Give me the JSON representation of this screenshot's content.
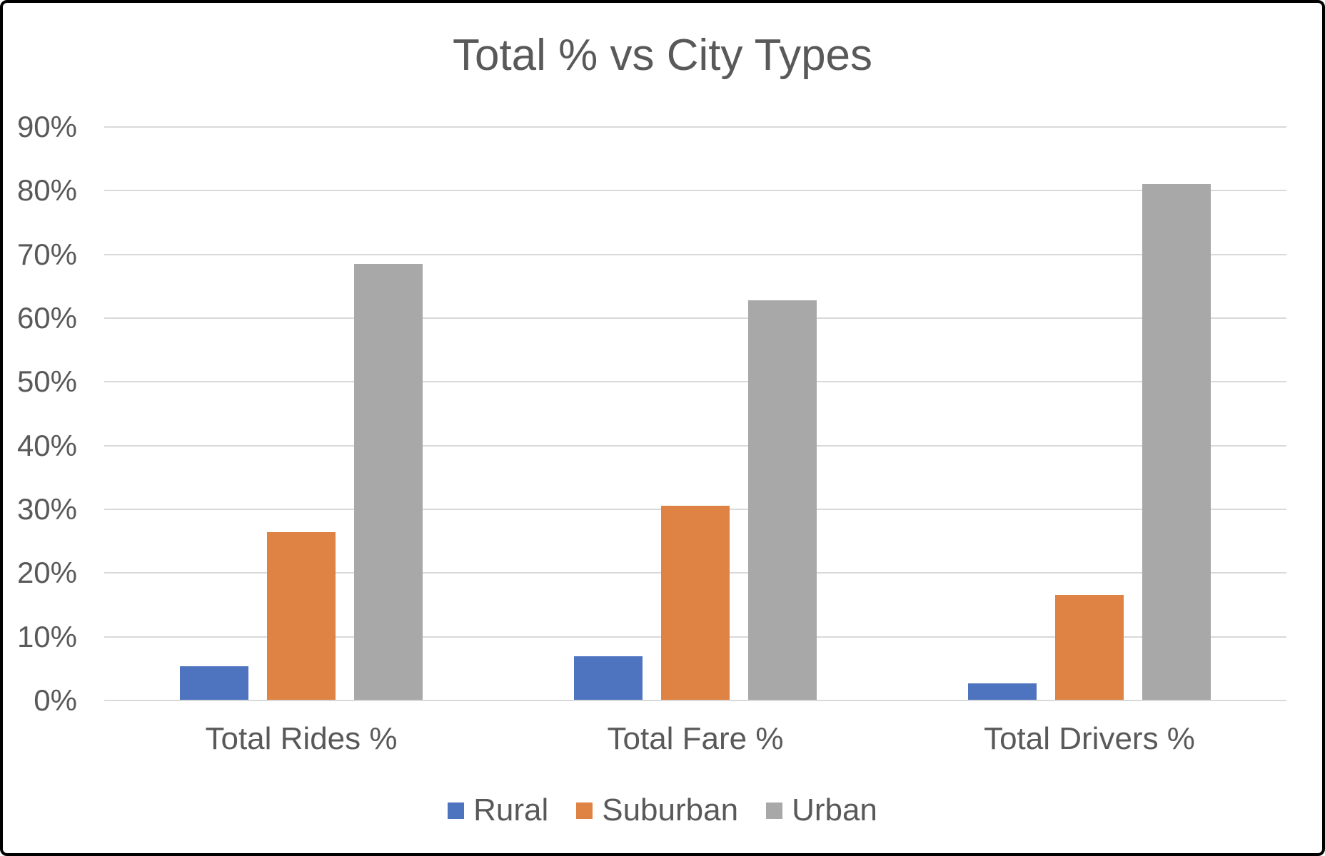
{
  "chart_data": {
    "type": "bar",
    "title": "Total % vs City Types",
    "categories": [
      "Total Rides %",
      "Total Fare %",
      "Total Drivers %"
    ],
    "series": [
      {
        "name": "Rural",
        "color": "#4e73bf",
        "values": [
          5.3,
          6.8,
          2.6
        ]
      },
      {
        "name": "Suburban",
        "color": "#df8344",
        "values": [
          26.3,
          30.5,
          16.5
        ]
      },
      {
        "name": "Urban",
        "color": "#a8a8a8",
        "values": [
          68.4,
          62.7,
          80.9
        ]
      }
    ],
    "xlabel": "",
    "ylabel": "",
    "ylim": [
      0,
      90
    ],
    "y_tick_step": 10,
    "y_tick_labels": [
      "0%",
      "10%",
      "20%",
      "30%",
      "40%",
      "50%",
      "60%",
      "70%",
      "80%",
      "90%"
    ],
    "grid": true,
    "legend_position": "bottom",
    "legend_entries": [
      "Rural",
      "Suburban",
      "Urban"
    ]
  },
  "colors": {
    "text": "#595959",
    "gridline": "#d9d9d9",
    "background": "#ffffff",
    "border": "#000000",
    "rural": "#4e73bf",
    "suburban": "#df8344",
    "urban": "#a8a8a8"
  }
}
